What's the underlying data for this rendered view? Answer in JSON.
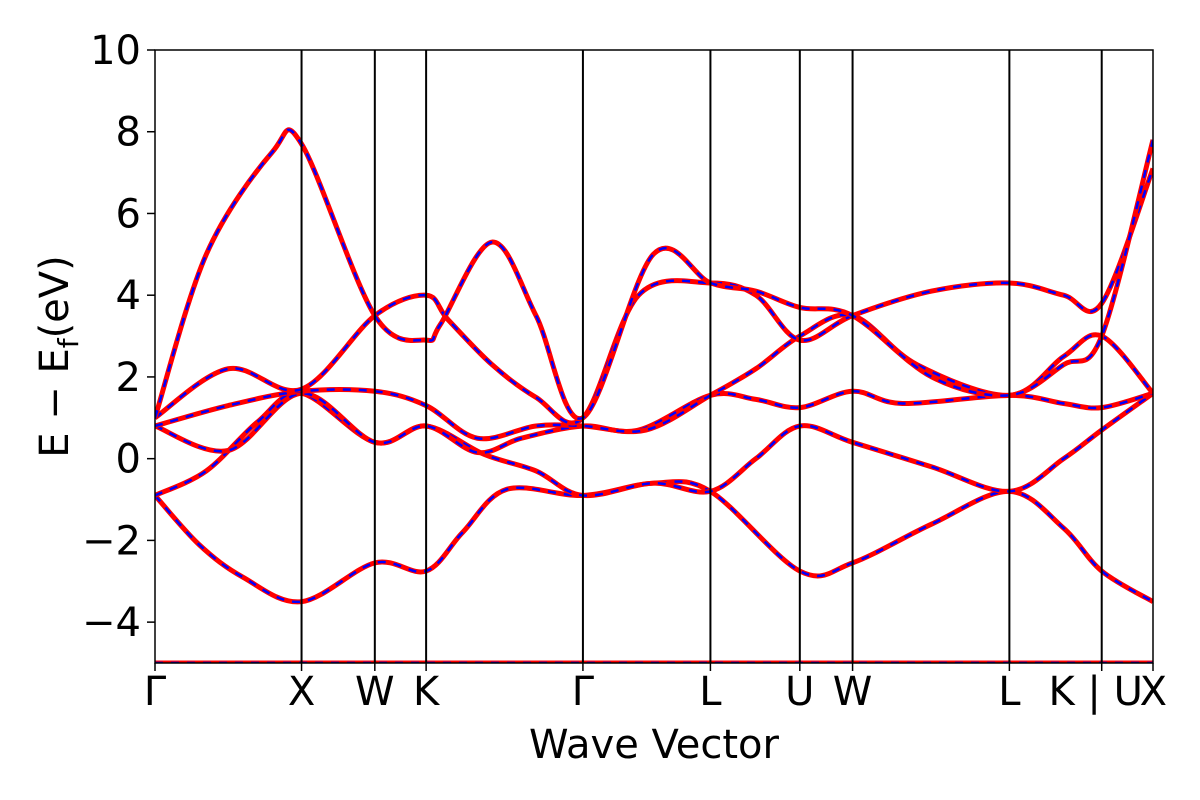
{
  "chart_data": {
    "type": "line",
    "title": "",
    "xlabel": "Wave Vector",
    "ylabel": "E − E",
    "ylabel_subscript": "f",
    "ylabel_unit": "(eV)",
    "ylim": [
      -5,
      10
    ],
    "y_ticks": [
      -4,
      -2,
      0,
      2,
      4,
      6,
      8,
      10
    ],
    "y_tick_labels": [
      "−4",
      "−2",
      "0",
      "2",
      "4",
      "6",
      "8",
      "10"
    ],
    "x_ticks": [
      0,
      1.0,
      1.5,
      1.85,
      2.92,
      3.79,
      4.4,
      4.76,
      5.83,
      6.46,
      6.81
    ],
    "x_tick_labels": [
      "Γ",
      "X",
      "W",
      "K",
      "Γ",
      "L",
      "U",
      "W",
      "L",
      "K | U",
      "X"
    ],
    "xlim": [
      0,
      6.81
    ],
    "grid": false,
    "line_colors": {
      "overlay": "#ff0000",
      "dashed": "#0000ff"
    },
    "series": [
      {
        "values_x": [
          0,
          0.5,
          1.0,
          1.25,
          1.5,
          1.7,
          1.85,
          2.15,
          2.4,
          2.65,
          2.92,
          3.35,
          3.79,
          4.1,
          4.4,
          4.58,
          4.76,
          5.3,
          5.83,
          6.15,
          6.46,
          6.81
        ],
        "values_y": [
          -5,
          -5,
          -5,
          -5,
          -5,
          -5,
          -5,
          -5,
          -5,
          -5,
          -5,
          -5,
          -5,
          -5,
          -5,
          -5,
          -5,
          -5,
          -5,
          -5,
          -5,
          -5
        ]
      },
      {
        "values_x": [
          0,
          0.3,
          0.6,
          1.0,
          1.5,
          1.85,
          2.1,
          2.4,
          2.92,
          3.4,
          3.79,
          4.4,
          4.76,
          5.3,
          5.83,
          6.2,
          6.46,
          6.81
        ],
        "values_y": [
          -0.9,
          -2.1,
          -2.9,
          -3.5,
          -2.55,
          -2.75,
          -1.8,
          -0.75,
          -0.9,
          -0.6,
          -0.8,
          -2.75,
          -2.55,
          -1.6,
          -0.8,
          -1.7,
          -2.75,
          -3.5
        ]
      },
      {
        "values_x": [
          0,
          0.35,
          0.7,
          1.0,
          1.5,
          1.85,
          2.25,
          2.6,
          2.92,
          3.4,
          3.79,
          4.1,
          4.4,
          4.76,
          5.3,
          5.83,
          6.2,
          6.46,
          6.81
        ],
        "values_y": [
          -0.9,
          -0.3,
          0.9,
          1.6,
          0.4,
          0.8,
          0.1,
          -0.3,
          -0.9,
          -0.6,
          -0.8,
          0.0,
          0.8,
          0.4,
          -0.2,
          -0.8,
          0.0,
          0.7,
          1.6
        ]
      },
      {
        "values_x": [
          0,
          0.5,
          1.0,
          1.5,
          1.85,
          2.2,
          2.5,
          2.92,
          3.3,
          3.79,
          4.1,
          4.4,
          4.76,
          5.1,
          5.83,
          6.2,
          6.46,
          6.81
        ],
        "values_y": [
          0.8,
          0.2,
          1.6,
          0.4,
          0.8,
          0.15,
          0.5,
          0.8,
          0.7,
          1.55,
          1.45,
          1.25,
          1.65,
          1.35,
          1.55,
          1.35,
          1.25,
          1.6
        ]
      },
      {
        "values_x": [
          0,
          0.5,
          1.0,
          1.5,
          1.85,
          2.2,
          2.6,
          2.92,
          3.35,
          3.79,
          4.1,
          4.4,
          4.76,
          5.2,
          5.83,
          6.2,
          6.46,
          6.81
        ],
        "values_y": [
          0.8,
          1.3,
          1.65,
          1.65,
          1.3,
          0.5,
          0.8,
          0.8,
          0.7,
          1.55,
          2.2,
          3.0,
          3.5,
          2.3,
          1.55,
          2.5,
          3.0,
          1.6
        ]
      },
      {
        "values_x": [
          0,
          0.5,
          1.0,
          1.5,
          1.85,
          2.0,
          2.3,
          2.6,
          2.92,
          3.3,
          3.79,
          4.1,
          4.4,
          4.76,
          5.3,
          5.83,
          6.2,
          6.46,
          6.81
        ],
        "values_y": [
          1.0,
          2.2,
          1.7,
          3.5,
          4.0,
          3.4,
          2.3,
          1.5,
          1.0,
          4.0,
          4.3,
          4.0,
          2.9,
          3.5,
          4.1,
          4.3,
          4.0,
          3.8,
          7.1
        ]
      },
      {
        "values_x": [
          0,
          0.35,
          0.8,
          1.0,
          1.5,
          1.85,
          1.95,
          2.3,
          2.6,
          2.92,
          3.4,
          3.79,
          4.1,
          4.4,
          4.76,
          5.3,
          5.83,
          6.2,
          6.46,
          6.81
        ],
        "values_y": [
          1.0,
          5.0,
          7.5,
          7.7,
          3.5,
          2.9,
          3.3,
          5.3,
          3.5,
          1.0,
          5.0,
          4.3,
          4.1,
          3.7,
          3.5,
          2.0,
          1.55,
          2.3,
          3.0,
          7.8
        ]
      }
    ]
  }
}
